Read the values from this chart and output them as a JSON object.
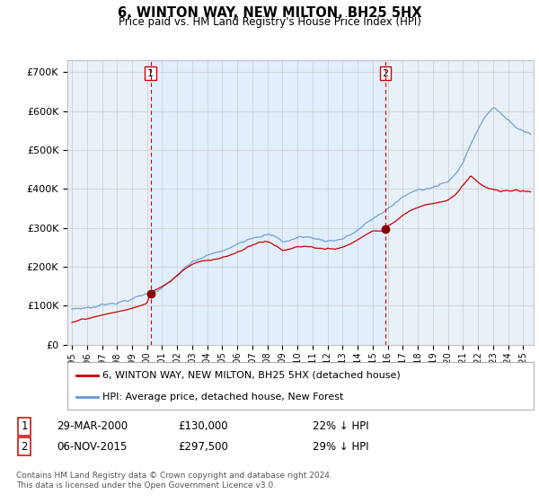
{
  "title": "6, WINTON WAY, NEW MILTON, BH25 5HX",
  "subtitle": "Price paid vs. HM Land Registry's House Price Index (HPI)",
  "ylabel_ticks": [
    "£0",
    "£100K",
    "£200K",
    "£300K",
    "£400K",
    "£500K",
    "£600K",
    "£700K"
  ],
  "ytick_values": [
    0,
    100000,
    200000,
    300000,
    400000,
    500000,
    600000,
    700000
  ],
  "ylim": [
    0,
    730000
  ],
  "xlim_start": 1994.7,
  "xlim_end": 2025.7,
  "sale1_date": 2000.24,
  "sale1_price": 130000,
  "sale2_date": 2015.84,
  "sale2_price": 297500,
  "legend_line1": "6, WINTON WAY, NEW MILTON, BH25 5HX (detached house)",
  "legend_line2": "HPI: Average price, detached house, New Forest",
  "table_row1": [
    "1",
    "29-MAR-2000",
    "£130,000",
    "22% ↓ HPI"
  ],
  "table_row2": [
    "2",
    "06-NOV-2015",
    "£297,500",
    "29% ↓ HPI"
  ],
  "footnote": "Contains HM Land Registry data © Crown copyright and database right 2024.\nThis data is licensed under the Open Government Licence v3.0.",
  "color_red": "#cc0000",
  "color_blue": "#6699cc",
  "fill_color": "#ddeeff",
  "background_color": "#ffffff",
  "grid_color": "#cccccc",
  "hpi_anchors": [
    [
      1995.0,
      92000
    ],
    [
      1995.5,
      93500
    ],
    [
      1996.0,
      96000
    ],
    [
      1996.5,
      98000
    ],
    [
      1997.0,
      103000
    ],
    [
      1997.5,
      108000
    ],
    [
      1998.0,
      112000
    ],
    [
      1998.5,
      116000
    ],
    [
      1999.0,
      121000
    ],
    [
      1999.5,
      127000
    ],
    [
      2000.0,
      133000
    ],
    [
      2000.5,
      140000
    ],
    [
      2001.0,
      150000
    ],
    [
      2001.5,
      162000
    ],
    [
      2002.0,
      178000
    ],
    [
      2002.5,
      195000
    ],
    [
      2003.0,
      207000
    ],
    [
      2003.5,
      215000
    ],
    [
      2004.0,
      222000
    ],
    [
      2004.5,
      228000
    ],
    [
      2005.0,
      232000
    ],
    [
      2005.5,
      240000
    ],
    [
      2006.0,
      250000
    ],
    [
      2006.5,
      260000
    ],
    [
      2007.0,
      272000
    ],
    [
      2007.5,
      280000
    ],
    [
      2008.0,
      283000
    ],
    [
      2008.5,
      275000
    ],
    [
      2009.0,
      262000
    ],
    [
      2009.5,
      265000
    ],
    [
      2010.0,
      272000
    ],
    [
      2010.5,
      274000
    ],
    [
      2011.0,
      271000
    ],
    [
      2011.5,
      267000
    ],
    [
      2012.0,
      265000
    ],
    [
      2012.5,
      267000
    ],
    [
      2013.0,
      272000
    ],
    [
      2013.5,
      280000
    ],
    [
      2014.0,
      292000
    ],
    [
      2014.5,
      305000
    ],
    [
      2015.0,
      318000
    ],
    [
      2015.5,
      330000
    ],
    [
      2016.0,
      345000
    ],
    [
      2016.5,
      358000
    ],
    [
      2017.0,
      372000
    ],
    [
      2017.5,
      382000
    ],
    [
      2018.0,
      390000
    ],
    [
      2018.5,
      395000
    ],
    [
      2019.0,
      400000
    ],
    [
      2019.5,
      405000
    ],
    [
      2020.0,
      410000
    ],
    [
      2020.5,
      430000
    ],
    [
      2021.0,
      460000
    ],
    [
      2021.5,
      505000
    ],
    [
      2022.0,
      545000
    ],
    [
      2022.5,
      580000
    ],
    [
      2023.0,
      605000
    ],
    [
      2023.5,
      595000
    ],
    [
      2024.0,
      570000
    ],
    [
      2024.5,
      555000
    ],
    [
      2025.0,
      545000
    ],
    [
      2025.5,
      540000
    ]
  ],
  "price_anchors": [
    [
      1995.0,
      57000
    ],
    [
      1995.5,
      59000
    ],
    [
      1996.0,
      62000
    ],
    [
      1996.5,
      65000
    ],
    [
      1997.0,
      70000
    ],
    [
      1997.5,
      74000
    ],
    [
      1998.0,
      78000
    ],
    [
      1998.5,
      82000
    ],
    [
      1999.0,
      87000
    ],
    [
      1999.5,
      93000
    ],
    [
      2000.0,
      100000
    ],
    [
      2000.24,
      130000
    ],
    [
      2000.5,
      133000
    ],
    [
      2001.0,
      143000
    ],
    [
      2001.5,
      155000
    ],
    [
      2002.0,
      172000
    ],
    [
      2002.5,
      188000
    ],
    [
      2003.0,
      200000
    ],
    [
      2003.5,
      208000
    ],
    [
      2004.0,
      214000
    ],
    [
      2004.5,
      218000
    ],
    [
      2005.0,
      221000
    ],
    [
      2005.5,
      228000
    ],
    [
      2006.0,
      238000
    ],
    [
      2006.5,
      248000
    ],
    [
      2007.0,
      260000
    ],
    [
      2007.5,
      267000
    ],
    [
      2008.0,
      268000
    ],
    [
      2008.5,
      259000
    ],
    [
      2009.0,
      247000
    ],
    [
      2009.5,
      250000
    ],
    [
      2010.0,
      256000
    ],
    [
      2010.5,
      258000
    ],
    [
      2011.0,
      255000
    ],
    [
      2011.5,
      251000
    ],
    [
      2012.0,
      249000
    ],
    [
      2012.5,
      251000
    ],
    [
      2013.0,
      256000
    ],
    [
      2013.5,
      264000
    ],
    [
      2014.0,
      275000
    ],
    [
      2014.5,
      287000
    ],
    [
      2015.0,
      298000
    ],
    [
      2015.84,
      297500
    ],
    [
      2016.0,
      310000
    ],
    [
      2016.5,
      322000
    ],
    [
      2017.0,
      338000
    ],
    [
      2017.5,
      350000
    ],
    [
      2018.0,
      358000
    ],
    [
      2018.5,
      365000
    ],
    [
      2019.0,
      368000
    ],
    [
      2019.5,
      372000
    ],
    [
      2020.0,
      376000
    ],
    [
      2020.5,
      390000
    ],
    [
      2021.0,
      410000
    ],
    [
      2021.5,
      435000
    ],
    [
      2022.0,
      415000
    ],
    [
      2022.5,
      405000
    ],
    [
      2023.0,
      398000
    ],
    [
      2023.5,
      392000
    ],
    [
      2024.0,
      395000
    ],
    [
      2024.5,
      395000
    ],
    [
      2025.0,
      393000
    ],
    [
      2025.5,
      392000
    ]
  ]
}
